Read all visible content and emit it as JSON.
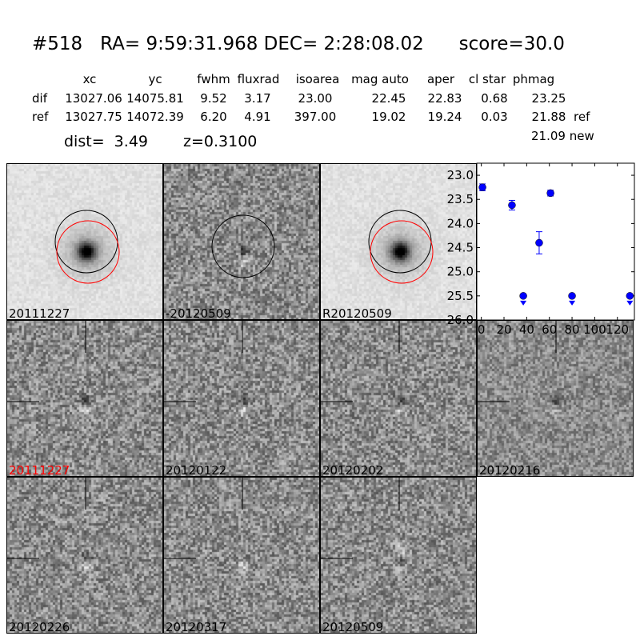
{
  "title": "#518   RA= 9:59:31.968 DEC= 2:28:08.02      score=30.0",
  "table": {
    "headers": [
      "xc",
      "yc",
      "fwhm",
      "fluxrad",
      "isoarea",
      "mag auto",
      "aper",
      "cl star",
      "phmag"
    ],
    "rows": [
      {
        "label": "dif",
        "values": [
          "13027.06",
          "14075.81",
          "9.52",
          "3.17",
          "23.00",
          "22.45",
          "22.83",
          "0.68",
          "23.25"
        ],
        "suffix": ""
      },
      {
        "label": "ref",
        "values": [
          "13027.75",
          "14072.39",
          "6.20",
          "4.91",
          "397.00",
          "19.02",
          "19.24",
          "0.03",
          "21.88"
        ],
        "suffix": "ref"
      }
    ],
    "new_mag": "21.09 new"
  },
  "dist": "dist=  3.49",
  "z": "z=0.3100",
  "stamps": [
    {
      "label": "20111227",
      "color": "#000000"
    },
    {
      "label": "-20120509",
      "color": "#000000"
    },
    {
      "label": "R20120509",
      "color": "#000000"
    },
    {
      "label": "20111227",
      "color": "#ff0000"
    },
    {
      "label": "20120122",
      "color": "#000000"
    },
    {
      "label": "20120202",
      "color": "#000000"
    },
    {
      "label": "20120216",
      "color": "#000000"
    },
    {
      "label": "20120226",
      "color": "#000000"
    },
    {
      "label": "20120317",
      "color": "#000000"
    },
    {
      "label": "20120509",
      "color": "#000000"
    }
  ],
  "chart_data": {
    "type": "scatter",
    "xlim": [
      -4,
      135
    ],
    "ylim": [
      26.0,
      22.75
    ],
    "y_inverted": true,
    "xticks": [
      "0",
      "20",
      "40",
      "60",
      "80",
      "100",
      "120"
    ],
    "yticks": [
      "23.0",
      "23.5",
      "24.0",
      "24.5",
      "25.0",
      "25.5",
      "26.0"
    ],
    "marker_color": "#0000ff",
    "points": [
      {
        "x": 1,
        "y": 23.25,
        "err": 0.07,
        "upper_limit": false
      },
      {
        "x": 27,
        "y": 23.62,
        "err": 0.1,
        "upper_limit": false
      },
      {
        "x": 37,
        "y": 25.5,
        "err": 0,
        "upper_limit": true
      },
      {
        "x": 51,
        "y": 24.4,
        "err": 0.23,
        "upper_limit": false
      },
      {
        "x": 61,
        "y": 23.37,
        "err": 0.06,
        "upper_limit": false
      },
      {
        "x": 80,
        "y": 25.5,
        "err": 0,
        "upper_limit": true
      },
      {
        "x": 131,
        "y": 25.5,
        "err": 0,
        "upper_limit": true
      }
    ]
  }
}
